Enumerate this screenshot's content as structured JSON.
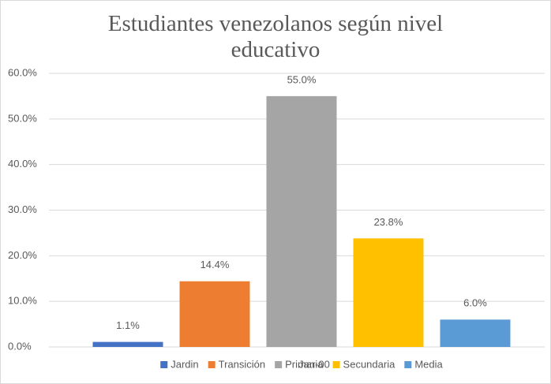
{
  "chart_data": {
    "type": "bar",
    "title": "Estudiantes venezolanos según nivel educativo",
    "categories": [
      "Jan-00"
    ],
    "series": [
      {
        "name": "Jardin",
        "color": "#4472c4",
        "values": [
          1.1
        ],
        "value_labels": [
          "1.1%"
        ]
      },
      {
        "name": "Transición",
        "color": "#ed7d31",
        "values": [
          14.4
        ],
        "value_labels": [
          "14.4%"
        ]
      },
      {
        "name": "Primaria",
        "color": "#a5a5a5",
        "values": [
          55.0
        ],
        "value_labels": [
          "55.0%"
        ]
      },
      {
        "name": "Secundaria",
        "color": "#ffc000",
        "values": [
          23.8
        ],
        "value_labels": [
          "23.8%"
        ]
      },
      {
        "name": "Media",
        "color": "#5b9bd5",
        "values": [
          6.0
        ],
        "value_labels": [
          "6.0%"
        ]
      }
    ],
    "ylim": [
      0,
      60
    ],
    "yticks": [
      {
        "value": 0,
        "label": "0.0%"
      },
      {
        "value": 10,
        "label": "10.0%"
      },
      {
        "value": 20,
        "label": "20.0%"
      },
      {
        "value": 30,
        "label": "30.0%"
      },
      {
        "value": 40,
        "label": "40.0%"
      },
      {
        "value": 50,
        "label": "50.0%"
      },
      {
        "value": 60,
        "label": "60.0%"
      }
    ],
    "grid": true,
    "legend": "bottom"
  }
}
